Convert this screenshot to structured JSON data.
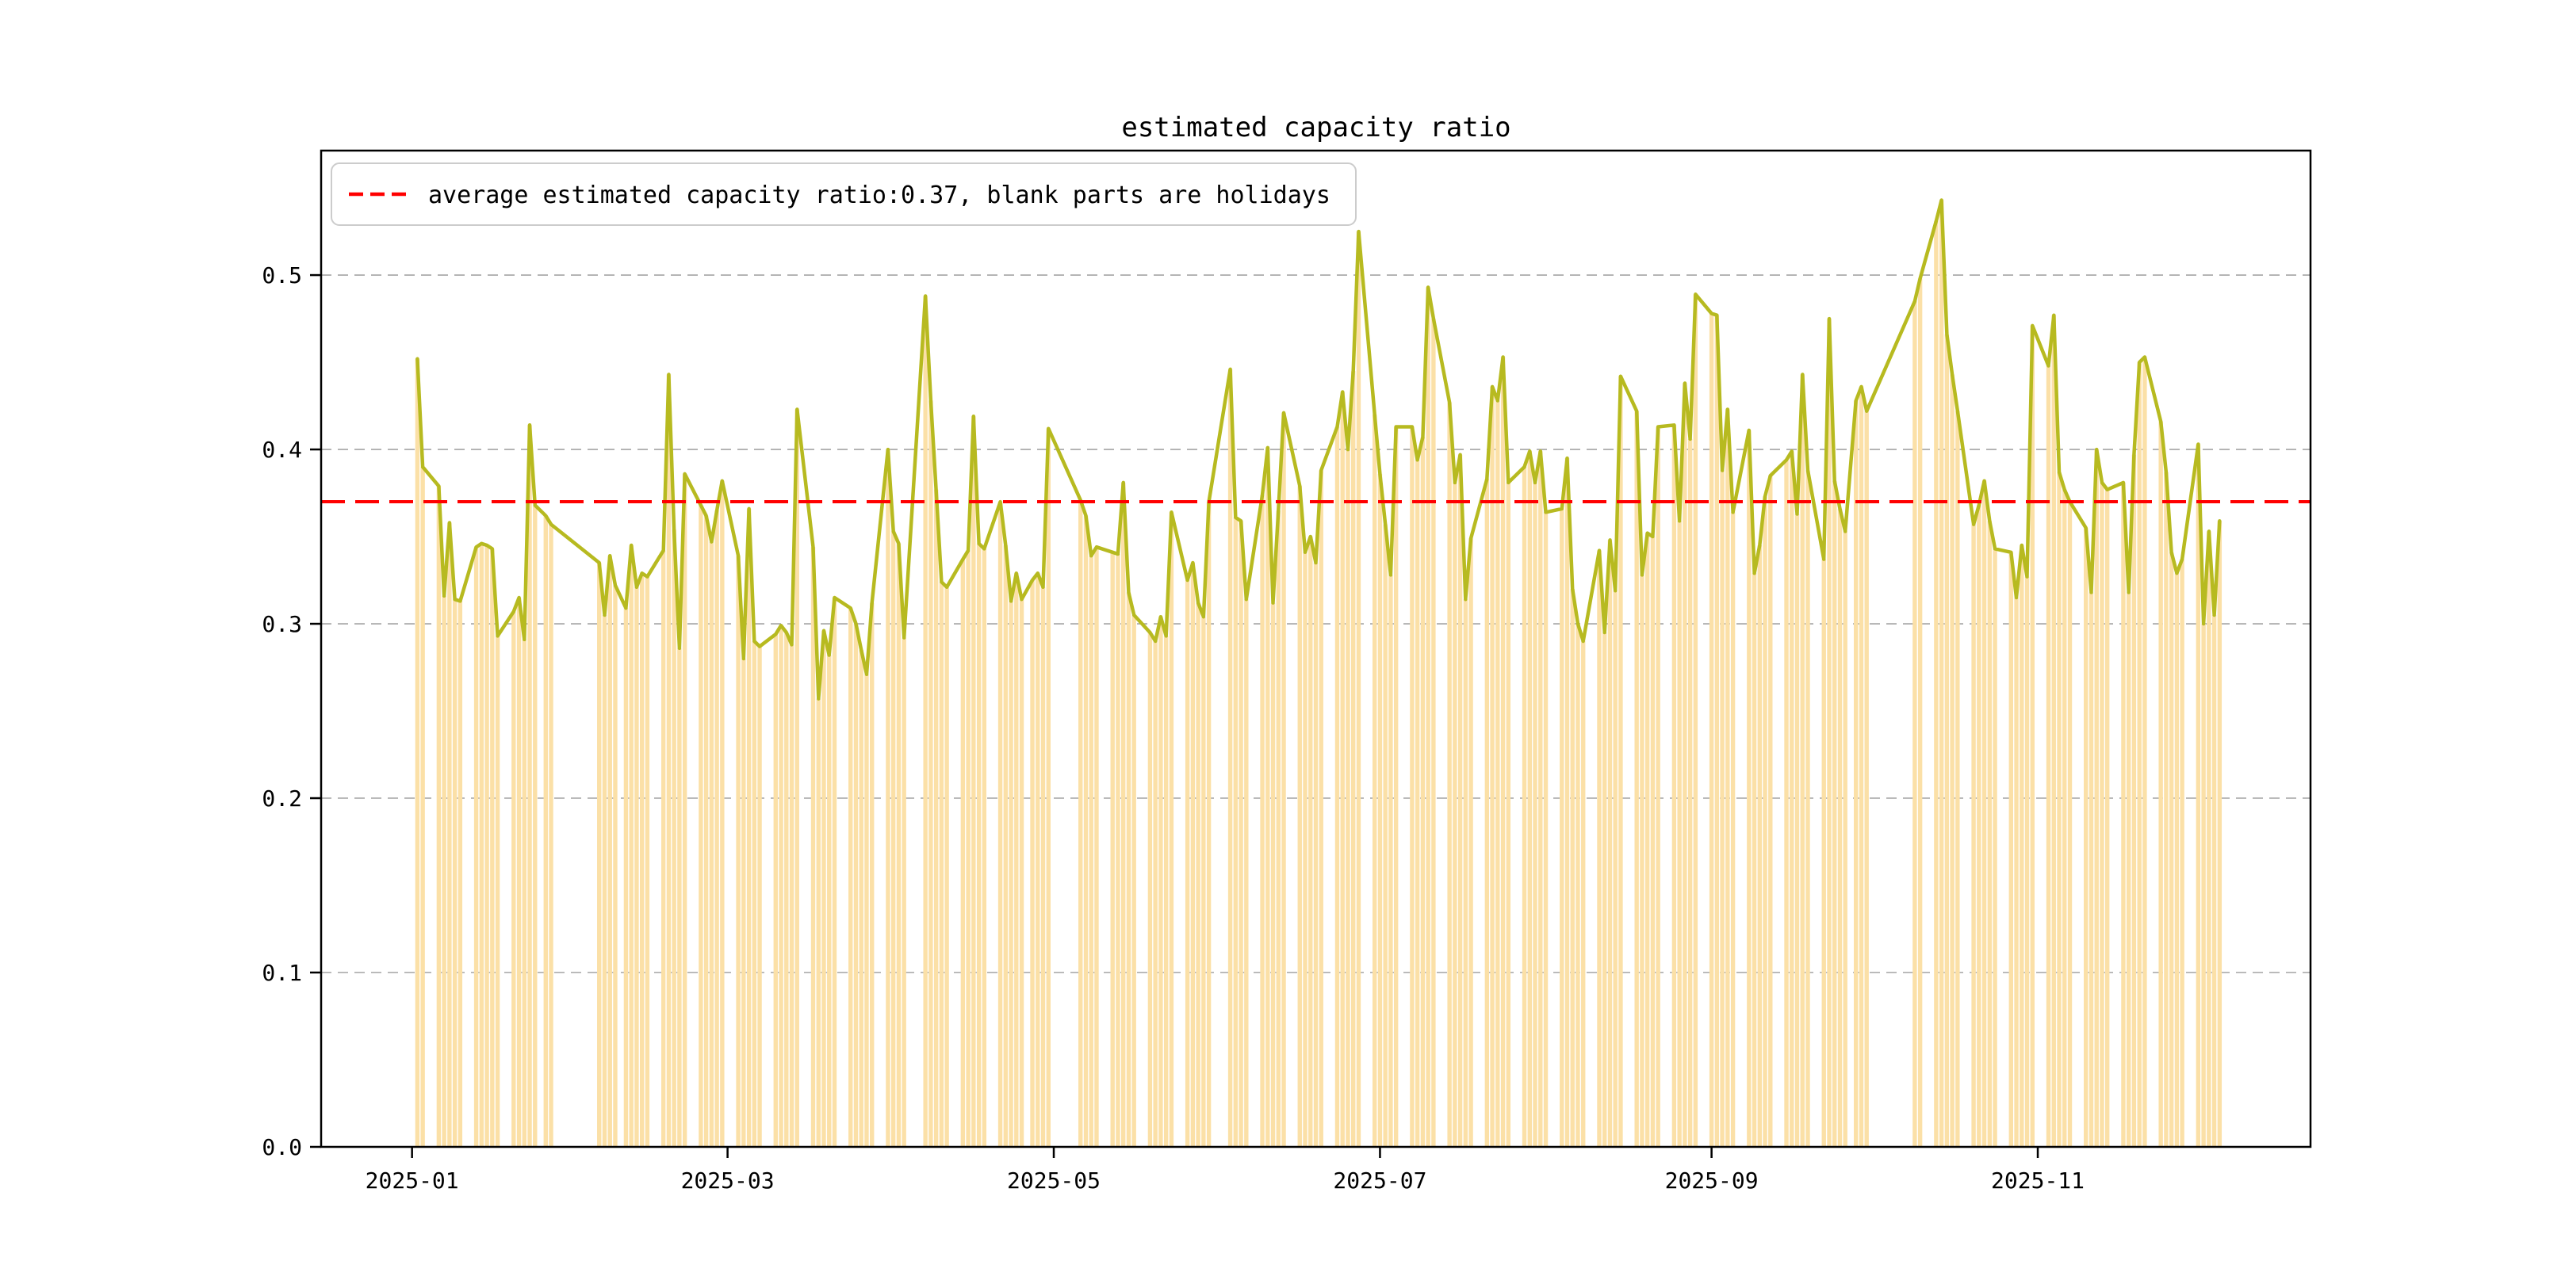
{
  "figure": {
    "background_color": "#ffffff"
  },
  "chart_data": {
    "type": "bar+line",
    "title": "estimated capacity ratio",
    "legend": {
      "label": "average estimated capacity ratio:0.37, blank parts are holidays",
      "position": "upper left",
      "sample_style": "red dashed line"
    },
    "average_value": 0.37,
    "annotation": "blank parts are holidays",
    "colors": {
      "line": "#b7ba20",
      "bar": "#fbe0a7",
      "average_line": "#ff0000",
      "grid": "#b0b0b0",
      "axis": "#000000"
    },
    "grid": "horizontal dashed",
    "ylim": [
      0,
      0.5714
    ],
    "yticks": [
      0.0,
      0.1,
      0.2,
      0.3,
      0.4,
      0.5
    ],
    "ytick_labels": [
      "0.0",
      "0.1",
      "0.2",
      "0.3",
      "0.4",
      "0.5"
    ],
    "xlim_dates": [
      "2024-12-15",
      "2025-12-22"
    ],
    "xticks": [
      {
        "date": "2025-01-01",
        "label": "2025-01"
      },
      {
        "date": "2025-03-01",
        "label": "2025-03"
      },
      {
        "date": "2025-05-01",
        "label": "2025-05"
      },
      {
        "date": "2025-07-01",
        "label": "2025-07"
      },
      {
        "date": "2025-09-01",
        "label": "2025-09"
      },
      {
        "date": "2025-11-01",
        "label": "2025-11"
      }
    ],
    "x": [
      "2025-01-02",
      "2025-01-03",
      "2025-01-06",
      "2025-01-07",
      "2025-01-08",
      "2025-01-09",
      "2025-01-10",
      "2025-01-13",
      "2025-01-14",
      "2025-01-15",
      "2025-01-16",
      "2025-01-17",
      "2025-01-20",
      "2025-01-21",
      "2025-01-22",
      "2025-01-23",
      "2025-01-24",
      "2025-01-26",
      "2025-01-27",
      "2025-02-05",
      "2025-02-06",
      "2025-02-07",
      "2025-02-08",
      "2025-02-10",
      "2025-02-11",
      "2025-02-12",
      "2025-02-13",
      "2025-02-14",
      "2025-02-17",
      "2025-02-18",
      "2025-02-19",
      "2025-02-20",
      "2025-02-21",
      "2025-02-24",
      "2025-02-25",
      "2025-02-26",
      "2025-02-27",
      "2025-02-28",
      "2025-03-03",
      "2025-03-04",
      "2025-03-05",
      "2025-03-06",
      "2025-03-07",
      "2025-03-10",
      "2025-03-11",
      "2025-03-12",
      "2025-03-13",
      "2025-03-14",
      "2025-03-17",
      "2025-03-18",
      "2025-03-19",
      "2025-03-20",
      "2025-03-21",
      "2025-03-24",
      "2025-03-25",
      "2025-03-26",
      "2025-03-27",
      "2025-03-28",
      "2025-03-31",
      "2025-04-01",
      "2025-04-02",
      "2025-04-03",
      "2025-04-07",
      "2025-04-08",
      "2025-04-09",
      "2025-04-10",
      "2025-04-11",
      "2025-04-14",
      "2025-04-15",
      "2025-04-16",
      "2025-04-17",
      "2025-04-18",
      "2025-04-21",
      "2025-04-22",
      "2025-04-23",
      "2025-04-24",
      "2025-04-25",
      "2025-04-27",
      "2025-04-28",
      "2025-04-29",
      "2025-04-30",
      "2025-05-06",
      "2025-05-07",
      "2025-05-08",
      "2025-05-09",
      "2025-05-12",
      "2025-05-13",
      "2025-05-14",
      "2025-05-15",
      "2025-05-16",
      "2025-05-19",
      "2025-05-20",
      "2025-05-21",
      "2025-05-22",
      "2025-05-23",
      "2025-05-26",
      "2025-05-27",
      "2025-05-28",
      "2025-05-29",
      "2025-05-30",
      "2025-06-03",
      "2025-06-04",
      "2025-06-05",
      "2025-06-06",
      "2025-06-09",
      "2025-06-10",
      "2025-06-11",
      "2025-06-12",
      "2025-06-13",
      "2025-06-16",
      "2025-06-17",
      "2025-06-18",
      "2025-06-19",
      "2025-06-20",
      "2025-06-23",
      "2025-06-24",
      "2025-06-25",
      "2025-06-26",
      "2025-06-27",
      "2025-06-30",
      "2025-07-01",
      "2025-07-02",
      "2025-07-03",
      "2025-07-04",
      "2025-07-07",
      "2025-07-08",
      "2025-07-09",
      "2025-07-10",
      "2025-07-11",
      "2025-07-14",
      "2025-07-15",
      "2025-07-16",
      "2025-07-17",
      "2025-07-18",
      "2025-07-21",
      "2025-07-22",
      "2025-07-23",
      "2025-07-24",
      "2025-07-25",
      "2025-07-28",
      "2025-07-29",
      "2025-07-30",
      "2025-07-31",
      "2025-08-01",
      "2025-08-04",
      "2025-08-05",
      "2025-08-06",
      "2025-08-07",
      "2025-08-08",
      "2025-08-11",
      "2025-08-12",
      "2025-08-13",
      "2025-08-14",
      "2025-08-15",
      "2025-08-18",
      "2025-08-19",
      "2025-08-20",
      "2025-08-21",
      "2025-08-22",
      "2025-08-25",
      "2025-08-26",
      "2025-08-27",
      "2025-08-28",
      "2025-08-29",
      "2025-09-01",
      "2025-09-02",
      "2025-09-03",
      "2025-09-04",
      "2025-09-05",
      "2025-09-08",
      "2025-09-09",
      "2025-09-10",
      "2025-09-11",
      "2025-09-12",
      "2025-09-15",
      "2025-09-16",
      "2025-09-17",
      "2025-09-18",
      "2025-09-19",
      "2025-09-22",
      "2025-09-23",
      "2025-09-24",
      "2025-09-25",
      "2025-09-26",
      "2025-09-28",
      "2025-09-29",
      "2025-09-30",
      "2025-10-09",
      "2025-10-10",
      "2025-10-13",
      "2025-10-14",
      "2025-10-15",
      "2025-10-16",
      "2025-10-17",
      "2025-10-20",
      "2025-10-21",
      "2025-10-22",
      "2025-10-23",
      "2025-10-24",
      "2025-10-27",
      "2025-10-28",
      "2025-10-29",
      "2025-10-30",
      "2025-10-31",
      "2025-11-03",
      "2025-11-04",
      "2025-11-05",
      "2025-11-06",
      "2025-11-07",
      "2025-11-10",
      "2025-11-11",
      "2025-11-12",
      "2025-11-13",
      "2025-11-14",
      "2025-11-17",
      "2025-11-18",
      "2025-11-19",
      "2025-11-20",
      "2025-11-21",
      "2025-11-24",
      "2025-11-25",
      "2025-11-26",
      "2025-11-27",
      "2025-11-28",
      "2025-12-01",
      "2025-12-02",
      "2025-12-03",
      "2025-12-04",
      "2025-12-05"
    ],
    "values": [
      0.452,
      0.39,
      0.379,
      0.316,
      0.358,
      0.314,
      0.313,
      0.344,
      0.346,
      0.345,
      0.343,
      0.293,
      0.307,
      0.315,
      0.291,
      0.414,
      0.368,
      0.362,
      0.357,
      0.335,
      0.305,
      0.339,
      0.322,
      0.309,
      0.345,
      0.321,
      0.329,
      0.327,
      0.342,
      0.443,
      0.354,
      0.286,
      0.386,
      0.368,
      0.362,
      0.347,
      0.365,
      0.382,
      0.339,
      0.28,
      0.366,
      0.29,
      0.287,
      0.294,
      0.299,
      0.295,
      0.288,
      0.423,
      0.344,
      0.257,
      0.296,
      0.282,
      0.315,
      0.309,
      0.3,
      0.285,
      0.271,
      0.312,
      0.4,
      0.353,
      0.346,
      0.292,
      0.488,
      0.428,
      0.377,
      0.324,
      0.321,
      0.337,
      0.342,
      0.419,
      0.346,
      0.343,
      0.37,
      0.345,
      0.313,
      0.329,
      0.314,
      0.325,
      0.329,
      0.321,
      0.412,
      0.371,
      0.362,
      0.339,
      0.344,
      0.341,
      0.34,
      0.381,
      0.318,
      0.305,
      0.295,
      0.29,
      0.304,
      0.293,
      0.364,
      0.325,
      0.335,
      0.312,
      0.304,
      0.37,
      0.446,
      0.361,
      0.359,
      0.314,
      0.374,
      0.401,
      0.312,
      0.365,
      0.421,
      0.379,
      0.341,
      0.35,
      0.335,
      0.388,
      0.413,
      0.433,
      0.4,
      0.445,
      0.525,
      0.42,
      0.386,
      0.357,
      0.328,
      0.413,
      0.413,
      0.394,
      0.407,
      0.493,
      0.475,
      0.427,
      0.381,
      0.397,
      0.314,
      0.349,
      0.383,
      0.436,
      0.428,
      0.453,
      0.381,
      0.39,
      0.399,
      0.381,
      0.399,
      0.364,
      0.366,
      0.395,
      0.32,
      0.3,
      0.29,
      0.342,
      0.295,
      0.348,
      0.319,
      0.442,
      0.422,
      0.328,
      0.352,
      0.35,
      0.413,
      0.414,
      0.359,
      0.438,
      0.406,
      0.489,
      0.478,
      0.477,
      0.388,
      0.423,
      0.364,
      0.411,
      0.329,
      0.345,
      0.373,
      0.385,
      0.394,
      0.399,
      0.363,
      0.443,
      0.388,
      0.337,
      0.475,
      0.382,
      0.366,
      0.353,
      0.428,
      0.436,
      0.422,
      0.485,
      0.498,
      0.531,
      0.543,
      0.466,
      0.443,
      0.422,
      0.357,
      0.368,
      0.382,
      0.359,
      0.343,
      0.341,
      0.315,
      0.345,
      0.327,
      0.471,
      0.448,
      0.477,
      0.387,
      0.377,
      0.37,
      0.355,
      0.318,
      0.4,
      0.381,
      0.377,
      0.381,
      0.318,
      0.397,
      0.45,
      0.453,
      0.416,
      0.387,
      0.341,
      0.329,
      0.337,
      0.403,
      0.3,
      0.353,
      0.305,
      0.359
    ]
  }
}
